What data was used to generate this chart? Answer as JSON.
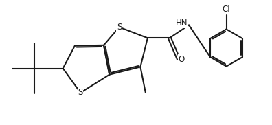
{
  "bg_color": "#ffffff",
  "line_color": "#1a1a1a",
  "lw": 1.5,
  "figsize": [
    3.96,
    1.82
  ],
  "dpi": 100,
  "xlim": [
    0.0,
    10.5
  ],
  "ylim": [
    0.5,
    5.2
  ]
}
